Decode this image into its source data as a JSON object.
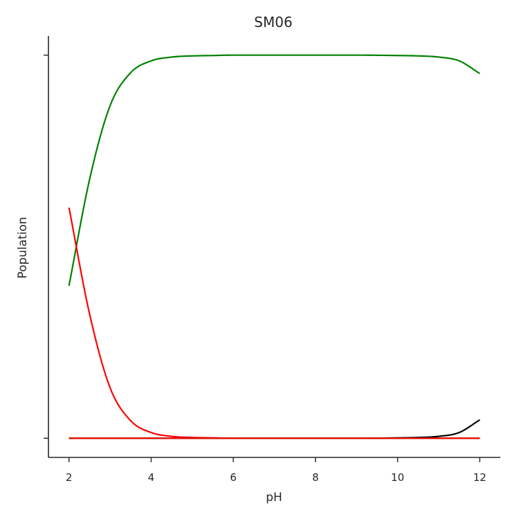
{
  "chart_data": {
    "type": "line",
    "title": "SM06",
    "xlabel": "pH",
    "ylabel": "Population",
    "xlim": [
      1.5,
      12.5
    ],
    "ylim": [
      -0.05,
      1.05
    ],
    "x_ticks": [
      2,
      4,
      6,
      8,
      10,
      12
    ],
    "y_ticks": [
      0,
      1
    ],
    "y_tick_labels_visible": false,
    "grid": false,
    "legend": "none",
    "x": [
      2,
      2.5,
      3,
      3.5,
      4,
      4.5,
      5,
      5.5,
      6,
      7,
      8,
      9,
      10,
      10.5,
      11,
      11.5,
      12
    ],
    "series": [
      {
        "color": "#008000",
        "values": [
          0.398,
          0.675,
          0.868,
          0.954,
          0.985,
          0.995,
          0.998,
          0.999,
          1.0,
          1.0,
          1.0,
          1.0,
          0.999,
          0.998,
          0.995,
          0.985,
          0.952
        ]
      },
      {
        "color": "#ff0000",
        "values": [
          0.602,
          0.325,
          0.132,
          0.046,
          0.015,
          0.005,
          0.002,
          0.001,
          0.0,
          0.0,
          0.0,
          0.0,
          0.0,
          0.0,
          0.0,
          0.0,
          0.0
        ]
      },
      {
        "color": "#000000",
        "values": [
          0.0,
          0.0,
          0.0,
          0.0,
          0.0,
          0.0,
          0.0,
          0.0,
          0.0,
          0.0,
          0.0,
          0.0,
          0.001,
          0.002,
          0.005,
          0.015,
          0.048
        ]
      },
      {
        "color": "#008000",
        "values": [
          0.0,
          0.0,
          0.0,
          0.0,
          0.0,
          0.0,
          0.0,
          0.0,
          0.0,
          0.0,
          0.0,
          0.0,
          0.0,
          0.0,
          0.0,
          0.0,
          0.0
        ]
      },
      {
        "color": "#ff0000",
        "values": [
          0.0,
          0.0,
          0.0,
          0.0,
          0.0,
          0.0,
          0.0,
          0.0,
          0.0,
          0.0,
          0.0,
          0.0,
          0.0,
          0.0,
          0.0,
          0.0,
          0.0
        ]
      }
    ]
  }
}
